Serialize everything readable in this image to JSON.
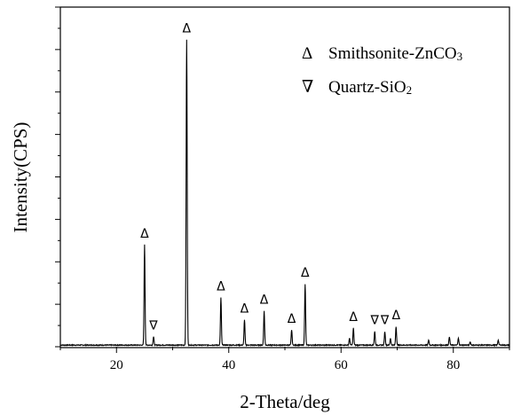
{
  "chart_data": {
    "type": "line",
    "xlabel": "2-Theta/deg",
    "ylabel": "Intensity(CPS)",
    "xlim": [
      10,
      90
    ],
    "ylim": [
      0,
      100
    ],
    "x_ticks": [
      20,
      40,
      60,
      80
    ],
    "y_ticks_labeled": false,
    "grid": false,
    "legend_position": "top-right",
    "legend": [
      {
        "marker": "Δ",
        "label": "Smithsonite-ZnCO",
        "subscript": "3",
        "phase": "smithsonite"
      },
      {
        "marker": "∇",
        "label": "Quartz-SiO",
        "subscript": "2",
        "phase": "quartz"
      }
    ],
    "series": [
      {
        "peaks": [
          {
            "x": 25.0,
            "y": 29.5
          },
          {
            "x": 26.6,
            "y": 2.5
          },
          {
            "x": 32.5,
            "y": 90.0
          },
          {
            "x": 38.6,
            "y": 14.0
          },
          {
            "x": 42.8,
            "y": 7.5
          },
          {
            "x": 46.3,
            "y": 10.0
          },
          {
            "x": 51.2,
            "y": 4.5
          },
          {
            "x": 53.6,
            "y": 18.0
          },
          {
            "x": 61.5,
            "y": 2.0
          },
          {
            "x": 62.2,
            "y": 5.0
          },
          {
            "x": 66.0,
            "y": 4.0
          },
          {
            "x": 67.8,
            "y": 4.0
          },
          {
            "x": 68.8,
            "y": 2.0
          },
          {
            "x": 69.8,
            "y": 5.5
          },
          {
            "x": 75.6,
            "y": 1.5
          },
          {
            "x": 79.3,
            "y": 2.5
          },
          {
            "x": 80.9,
            "y": 2.0
          },
          {
            "x": 83.0,
            "y": 1.0
          },
          {
            "x": 88.0,
            "y": 1.5
          }
        ]
      }
    ],
    "annotations": [
      {
        "x": 25.0,
        "y": 29.5,
        "marker": "Δ",
        "phase": "smithsonite"
      },
      {
        "x": 26.6,
        "y": 2.5,
        "marker": "∇",
        "phase": "quartz"
      },
      {
        "x": 32.5,
        "y": 90.0,
        "marker": "Δ",
        "phase": "smithsonite"
      },
      {
        "x": 38.6,
        "y": 14.0,
        "marker": "Δ",
        "phase": "smithsonite"
      },
      {
        "x": 42.8,
        "y": 7.5,
        "marker": "Δ",
        "phase": "smithsonite"
      },
      {
        "x": 46.3,
        "y": 10.0,
        "marker": "Δ",
        "phase": "smithsonite"
      },
      {
        "x": 51.2,
        "y": 4.5,
        "marker": "Δ",
        "phase": "smithsonite"
      },
      {
        "x": 53.6,
        "y": 18.0,
        "marker": "Δ",
        "phase": "smithsonite"
      },
      {
        "x": 62.2,
        "y": 5.0,
        "marker": "Δ",
        "phase": "smithsonite"
      },
      {
        "x": 66.0,
        "y": 4.0,
        "marker": "∇",
        "phase": "quartz"
      },
      {
        "x": 67.8,
        "y": 4.0,
        "marker": "∇",
        "phase": "quartz"
      },
      {
        "x": 69.8,
        "y": 5.5,
        "marker": "Δ",
        "phase": "smithsonite"
      }
    ]
  }
}
